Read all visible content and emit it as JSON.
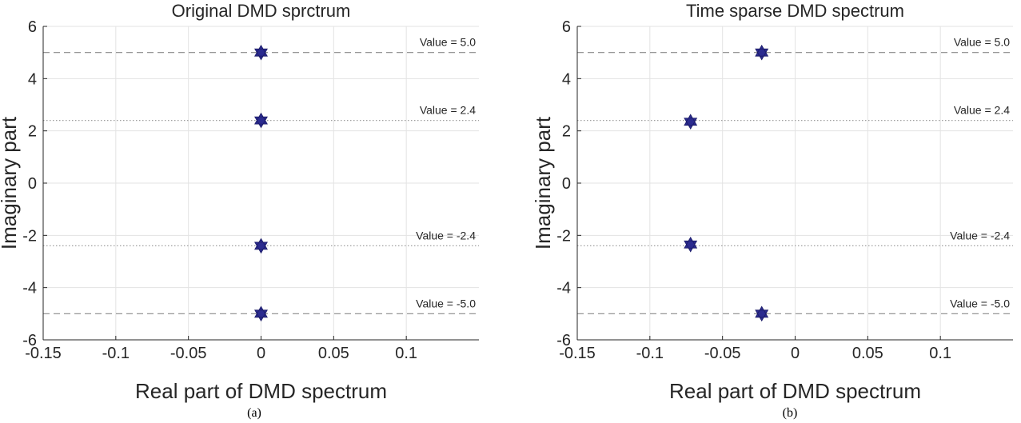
{
  "chart_data": [
    {
      "type": "scatter",
      "title": "Original DMD sprctrum",
      "xlabel": "Real part of DMD spectrum",
      "ylabel": "Imaginary part",
      "caption": "(a)",
      "xlim": [
        -0.15,
        0.15
      ],
      "ylim": [
        -6,
        6
      ],
      "xticks": [
        -0.15,
        -0.1,
        -0.05,
        0,
        0.05,
        0.1
      ],
      "xtick_labels": [
        "-0.15",
        "-0.1",
        "-0.05",
        "0",
        "0.05",
        "0.1"
      ],
      "yticks": [
        6,
        4,
        2,
        0,
        -2,
        -4,
        -6
      ],
      "ytick_labels": [
        "6",
        "4",
        "2",
        "0",
        "-2",
        "-4",
        "-6"
      ],
      "grid": true,
      "marker": "hexagram",
      "marker_color": "#2b2b8f",
      "points": [
        {
          "x": 0,
          "y": 5.0
        },
        {
          "x": 0,
          "y": 2.4
        },
        {
          "x": 0,
          "y": -2.4
        },
        {
          "x": 0,
          "y": -5.0
        }
      ],
      "reference_lines": [
        {
          "y": 5.0,
          "label": "Value = 5.0",
          "style": "dashed"
        },
        {
          "y": 2.4,
          "label": "Value = 2.4",
          "style": "dotted"
        },
        {
          "y": -2.4,
          "label": "Value = -2.4",
          "style": "dotted"
        },
        {
          "y": -5.0,
          "label": "Value = -5.0",
          "style": "dashed"
        }
      ]
    },
    {
      "type": "scatter",
      "title": "Time sparse DMD spectrum",
      "xlabel": "Real part of DMD spectrum",
      "ylabel": "Imaginary part",
      "caption": "(b)",
      "xlim": [
        -0.15,
        0.15
      ],
      "ylim": [
        -6,
        6
      ],
      "xticks": [
        -0.15,
        -0.1,
        -0.05,
        0,
        0.05,
        0.1
      ],
      "xtick_labels": [
        "-0.15",
        "-0.1",
        "-0.05",
        "0",
        "0.05",
        "0.1"
      ],
      "yticks": [
        6,
        4,
        2,
        0,
        -2,
        -4,
        -6
      ],
      "ytick_labels": [
        "6",
        "4",
        "2",
        "0",
        "-2",
        "-4",
        "-6"
      ],
      "grid": true,
      "marker": "hexagram",
      "marker_color": "#2b2b8f",
      "points": [
        {
          "x": -0.023,
          "y": 5.0
        },
        {
          "x": -0.072,
          "y": 2.35
        },
        {
          "x": -0.072,
          "y": -2.35
        },
        {
          "x": -0.023,
          "y": -5.0
        }
      ],
      "reference_lines": [
        {
          "y": 5.0,
          "label": "Value = 5.0",
          "style": "dashed"
        },
        {
          "y": 2.4,
          "label": "Value = 2.4",
          "style": "dotted"
        },
        {
          "y": -2.4,
          "label": "Value = -2.4",
          "style": "dotted"
        },
        {
          "y": -5.0,
          "label": "Value = -5.0",
          "style": "dashed"
        }
      ]
    }
  ]
}
